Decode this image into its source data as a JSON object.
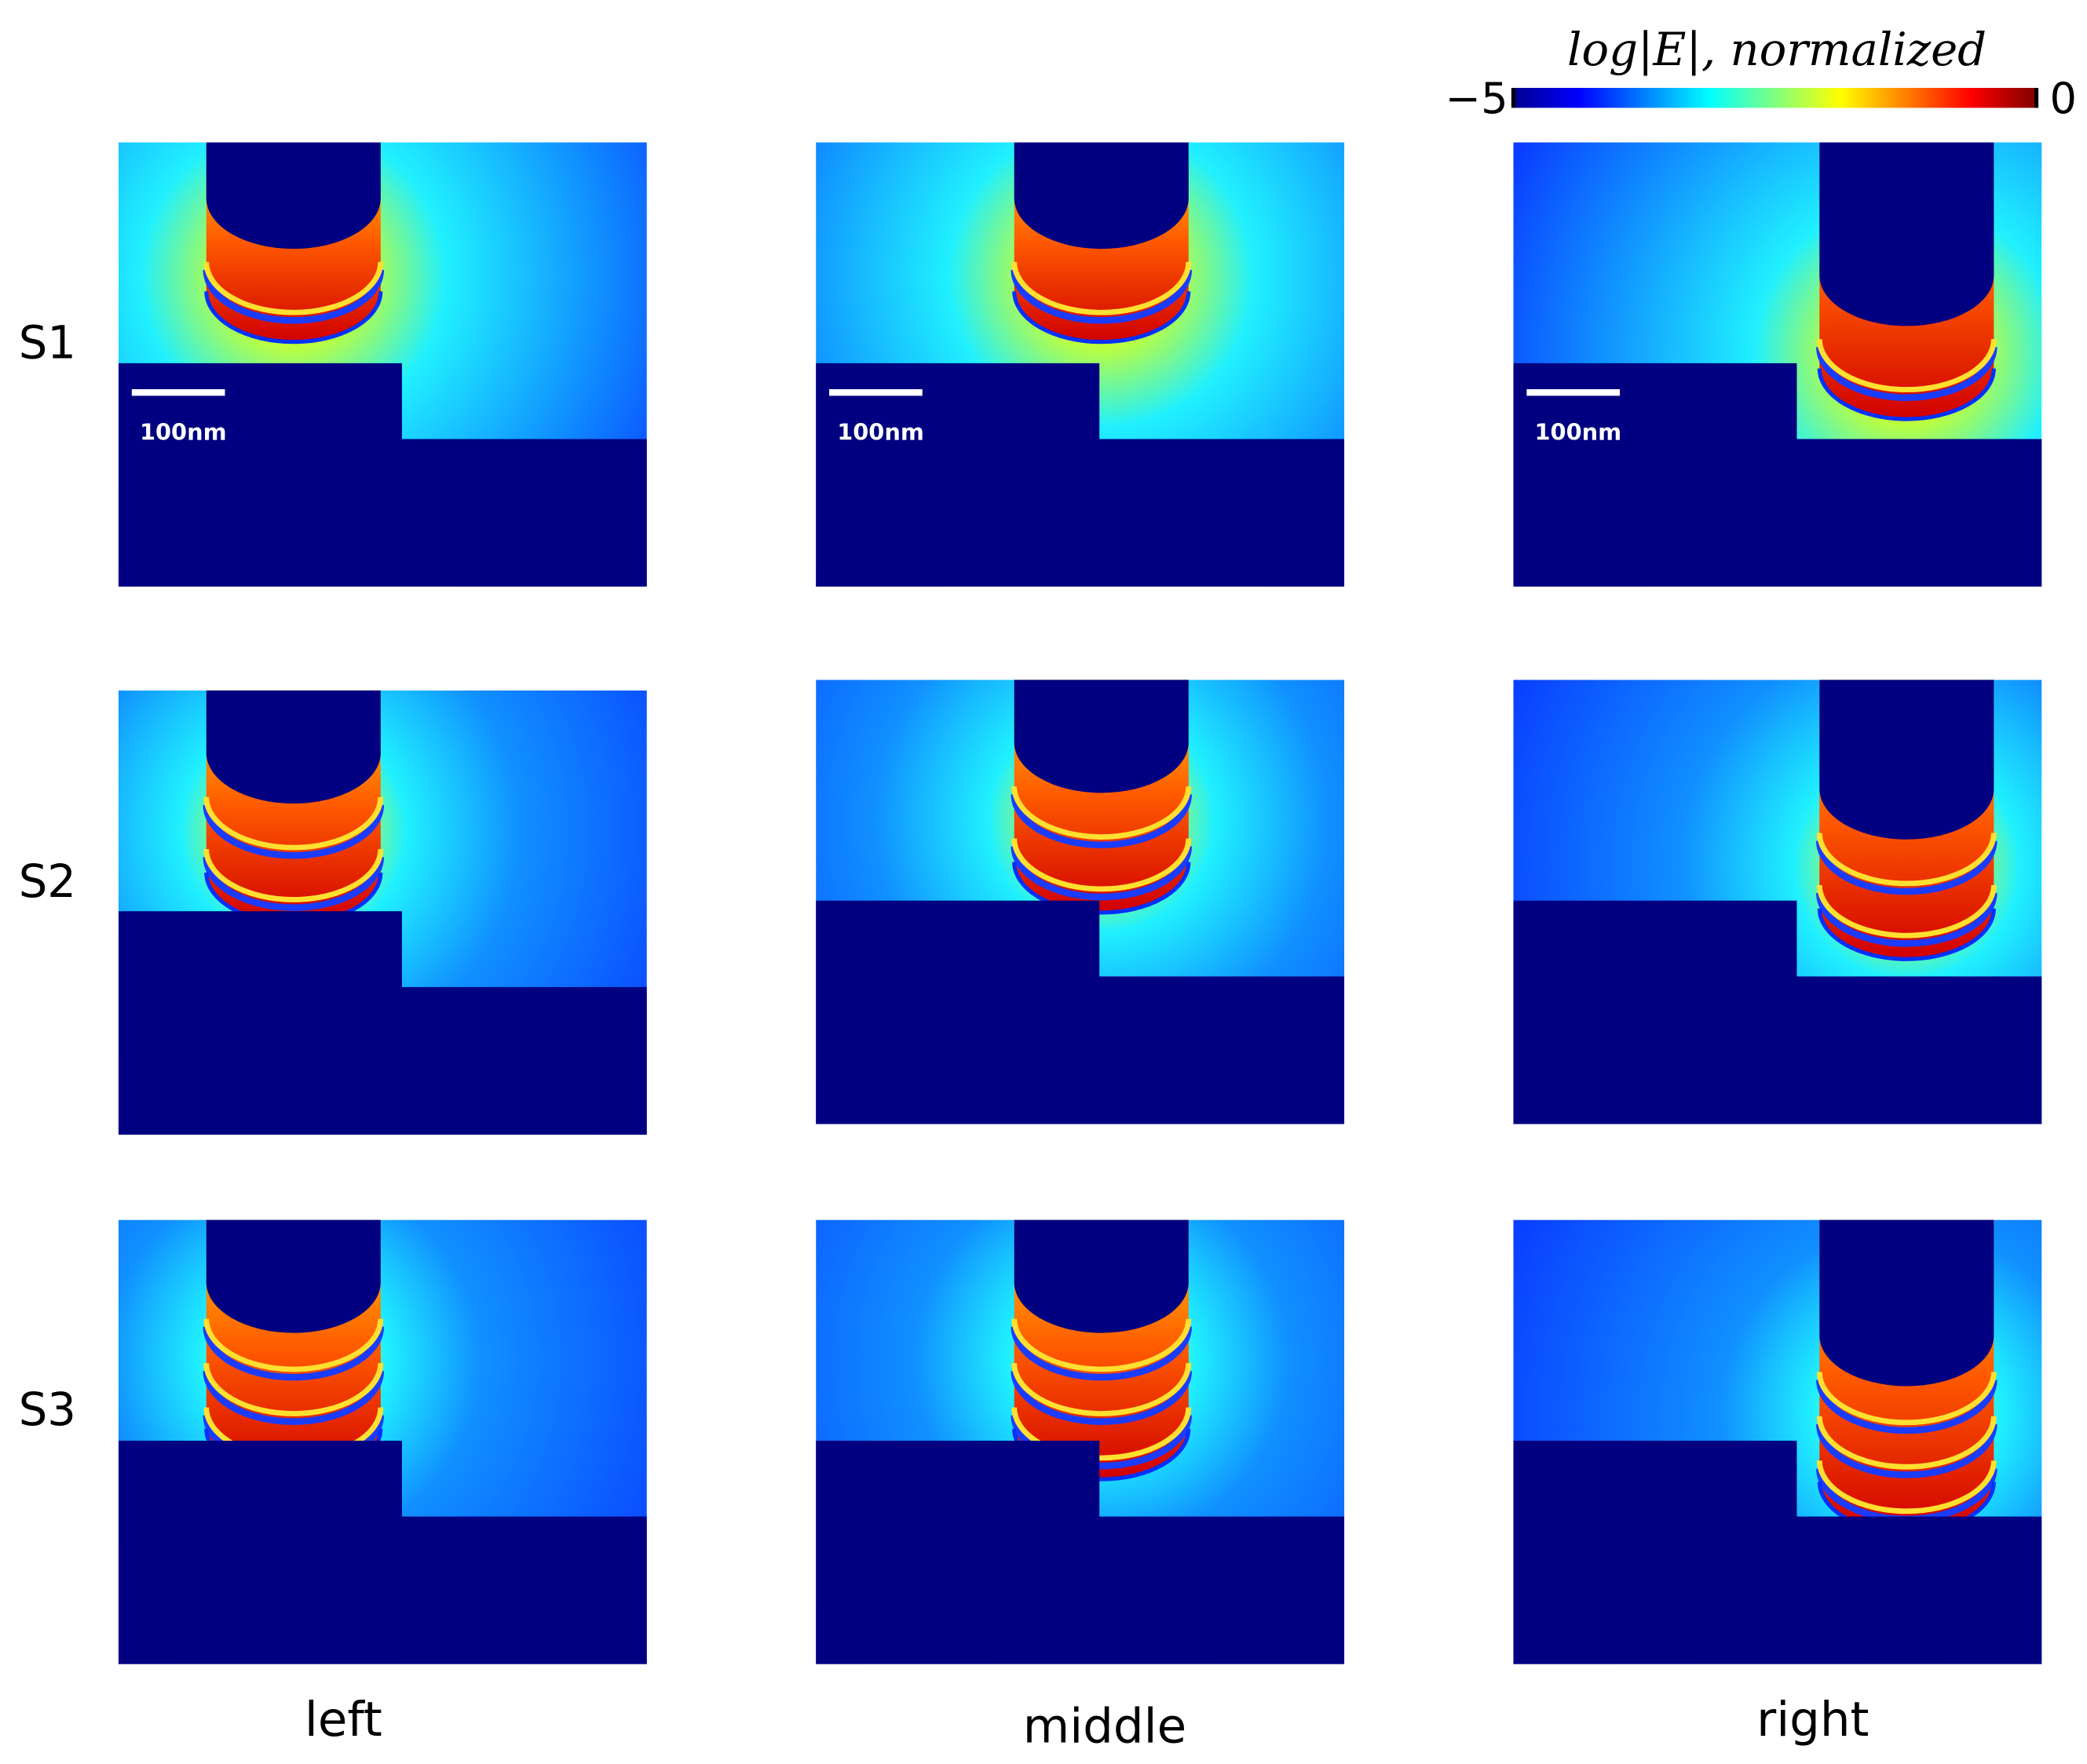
{
  "colorbar": {
    "title": "log|E|, normalized",
    "lim": [
      -5,
      0
    ],
    "ticks": [
      {
        "value": -5,
        "label": "−5"
      },
      0
    ]
  },
  "rows": [
    "S1",
    "S2",
    "S3"
  ],
  "columns": [
    "left",
    "middle",
    "right"
  ],
  "scale_bar": {
    "label": "100nm"
  }
}
